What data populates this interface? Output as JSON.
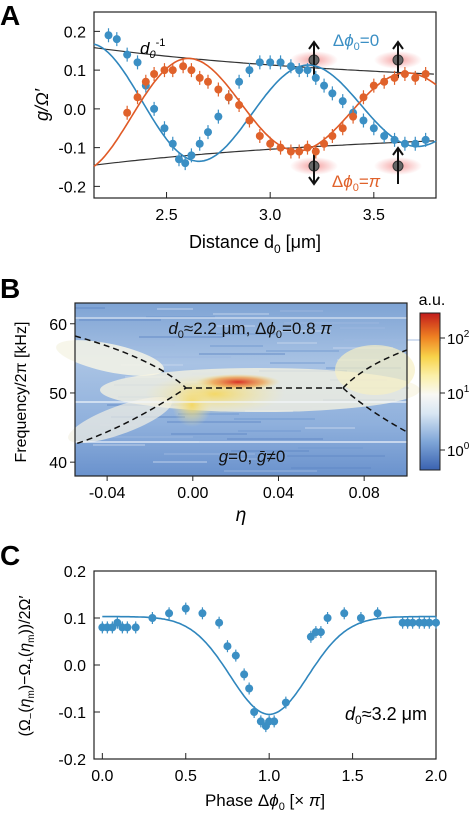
{
  "colors": {
    "blue": "#3b8fc4",
    "orange": "#e0622b",
    "black": "#222222",
    "fitblue": "#2f86bd",
    "fitorange": "#e05a26"
  },
  "chart_data": [
    {
      "panel": "A",
      "type": "scatter",
      "xlabel": "Distance d0 [μm]",
      "ylabel": "g/Ω′",
      "xlim": [
        2.15,
        3.8
      ],
      "ylim": [
        -0.23,
        0.25
      ],
      "xticks": [
        "2.5",
        "3.0",
        "3.5"
      ],
      "yticks": [
        "-0.2",
        "-0.1",
        "0.0",
        "0.1",
        "0.2"
      ],
      "annotations": [
        "d0^-1",
        "Δφ0=0",
        "Δφ0=π"
      ],
      "series": [
        {
          "name": "Δφ0=0",
          "color": "blue",
          "x": [
            2.22,
            2.26,
            2.31,
            2.36,
            2.4,
            2.44,
            2.49,
            2.53,
            2.56,
            2.59,
            2.62,
            2.66,
            2.7,
            2.75,
            2.8,
            2.85,
            2.9,
            2.95,
            3.0,
            3.05,
            3.1,
            3.14,
            3.18,
            3.22,
            3.26,
            3.3,
            3.35,
            3.4,
            3.45,
            3.5,
            3.55,
            3.6,
            3.65,
            3.7,
            3.75
          ],
          "y": [
            0.19,
            0.18,
            0.14,
            0.12,
            0.06,
            0.0,
            -0.05,
            -0.09,
            -0.13,
            -0.14,
            -0.12,
            -0.09,
            -0.06,
            -0.02,
            0.03,
            0.07,
            0.1,
            0.12,
            0.12,
            0.12,
            0.11,
            0.1,
            0.1,
            0.08,
            0.06,
            0.04,
            0.02,
            -0.01,
            -0.03,
            -0.05,
            -0.07,
            -0.08,
            -0.09,
            -0.09,
            -0.08
          ]
        },
        {
          "name": "Δφ0=π",
          "color": "orange",
          "x": [
            2.31,
            2.36,
            2.4,
            2.44,
            2.49,
            2.53,
            2.58,
            2.62,
            2.66,
            2.7,
            2.75,
            2.8,
            2.85,
            2.9,
            2.95,
            3.0,
            3.05,
            3.1,
            3.14,
            3.18,
            3.22,
            3.26,
            3.3,
            3.35,
            3.4,
            3.45,
            3.5,
            3.55,
            3.6,
            3.65,
            3.7,
            3.75
          ],
          "y": [
            -0.01,
            0.03,
            0.07,
            0.09,
            0.1,
            0.1,
            0.11,
            0.1,
            0.08,
            0.07,
            0.05,
            0.03,
            0.01,
            -0.03,
            -0.07,
            -0.09,
            -0.1,
            -0.11,
            -0.11,
            -0.1,
            -0.11,
            -0.09,
            -0.07,
            -0.05,
            -0.02,
            0.03,
            0.06,
            0.07,
            0.08,
            0.09,
            0.08,
            0.09
          ]
        }
      ]
    },
    {
      "panel": "B",
      "type": "heatmap",
      "xlabel": "η",
      "ylabel": "Frequency/2π [kHz]",
      "xlim": [
        -0.055,
        0.1
      ],
      "ylim": [
        38,
        63
      ],
      "xticks": [
        "-0.04",
        "0.00",
        "0.04",
        "0.08"
      ],
      "yticks": [
        "40",
        "50",
        "60"
      ],
      "colorbar": {
        "label": "a.u.",
        "ticks": [
          "10^2",
          "10^1",
          "10^0"
        ],
        "scale": "log"
      },
      "annotations": [
        "d0≈2.2 μm, Δφ0=0.8 π",
        "g=0, ḡ≠0"
      ]
    },
    {
      "panel": "C",
      "type": "scatter",
      "xlabel": "Phase Δφ0 [× π]",
      "ylabel": "(Ω−(ηm)−Ω+(ηm))/2Ω′",
      "xlim": [
        -0.05,
        2.0
      ],
      "ylim": [
        -0.2,
        0.2
      ],
      "xticks": [
        "0.0",
        "0.5",
        "1.0",
        "1.5",
        "2.0"
      ],
      "yticks": [
        "-0.2",
        "-0.1",
        "0.0",
        "0.1",
        "0.2"
      ],
      "annotations": [
        "d0≈3.2 μm"
      ],
      "series": [
        {
          "color": "blue",
          "x": [
            0.0,
            0.03,
            0.06,
            0.09,
            0.12,
            0.15,
            0.2,
            0.3,
            0.4,
            0.5,
            0.6,
            0.7,
            0.75,
            0.8,
            0.85,
            0.88,
            0.91,
            0.95,
            0.98,
            1.0,
            1.03,
            1.1,
            1.25,
            1.28,
            1.31,
            1.35,
            1.45,
            1.55,
            1.65,
            1.8,
            1.83,
            1.86,
            1.9,
            1.93,
            1.96,
            2.0
          ],
          "y": [
            0.08,
            0.08,
            0.08,
            0.09,
            0.08,
            0.08,
            0.08,
            0.1,
            0.11,
            0.12,
            0.11,
            0.09,
            0.04,
            0.02,
            -0.02,
            -0.05,
            -0.1,
            -0.12,
            -0.13,
            -0.12,
            -0.12,
            -0.08,
            0.06,
            0.07,
            0.07,
            0.1,
            0.11,
            0.1,
            0.11,
            0.09,
            0.09,
            0.09,
            0.09,
            0.09,
            0.09,
            0.09
          ]
        }
      ]
    }
  ]
}
